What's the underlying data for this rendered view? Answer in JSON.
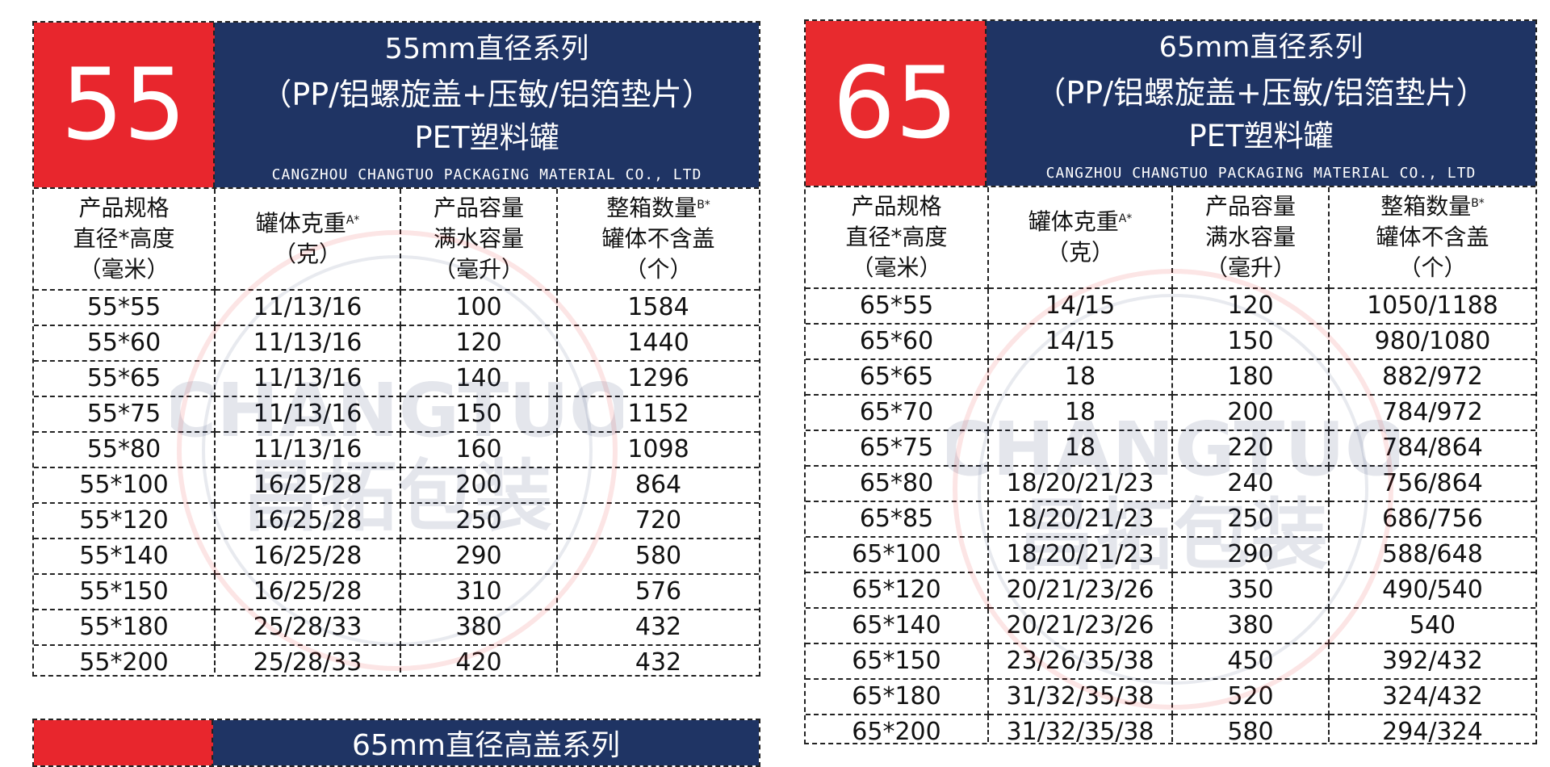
{
  "left": {
    "badge": "55",
    "title_line1": "55mm直径系列",
    "title_line2": "（PP/铝螺旋盖+压敏/铝箔垫片）",
    "title_line3": "PET塑料罐",
    "company": "CANGZHOU CHANGTUO PACKAGING MATERIAL CO., LTD",
    "headers": [
      {
        "lines": [
          "产品规格",
          "直径*高度",
          "（毫米）"
        ],
        "sup": ""
      },
      {
        "lines": [
          "罐体克重",
          "（克）"
        ],
        "sup": "A*"
      },
      {
        "lines": [
          "产品容量",
          "满水容量",
          "（毫升）"
        ],
        "sup": ""
      },
      {
        "lines": [
          "整箱数量",
          "罐体不含盖",
          "（个）"
        ],
        "sup": "B*"
      }
    ],
    "rows": [
      [
        "55*55",
        "11/13/16",
        "100",
        "1584"
      ],
      [
        "55*60",
        "11/13/16",
        "120",
        "1440"
      ],
      [
        "55*65",
        "11/13/16",
        "140",
        "1296"
      ],
      [
        "55*75",
        "11/13/16",
        "150",
        "1152"
      ],
      [
        "55*80",
        "11/13/16",
        "160",
        "1098"
      ],
      [
        "55*100",
        "16/25/28",
        "200",
        "864"
      ],
      [
        "55*120",
        "16/25/28",
        "250",
        "720"
      ],
      [
        "55*140",
        "16/25/28",
        "290",
        "580"
      ],
      [
        "55*150",
        "16/25/28",
        "310",
        "576"
      ],
      [
        "55*180",
        "25/28/33",
        "380",
        "432"
      ],
      [
        "55*200",
        "25/28/33",
        "420",
        "432"
      ]
    ]
  },
  "right": {
    "badge": "65",
    "title_line1": "65mm直径系列",
    "title_line2": "（PP/铝螺旋盖+压敏/铝箔垫片）",
    "title_line3": "PET塑料罐",
    "company": "CANGZHOU CHANGTUO PACKAGING MATERIAL CO., LTD",
    "headers": [
      {
        "lines": [
          "产品规格",
          "直径*高度",
          "（毫米）"
        ],
        "sup": ""
      },
      {
        "lines": [
          "罐体克重",
          "（克）"
        ],
        "sup": "A*"
      },
      {
        "lines": [
          "产品容量",
          "满水容量",
          "（毫升）"
        ],
        "sup": ""
      },
      {
        "lines": [
          "整箱数量",
          "罐体不含盖",
          "（个）"
        ],
        "sup": "B*"
      }
    ],
    "rows": [
      [
        "65*55",
        "14/15",
        "120",
        "1050/1188"
      ],
      [
        "65*60",
        "14/15",
        "150",
        "980/1080"
      ],
      [
        "65*65",
        "18",
        "180",
        "882/972"
      ],
      [
        "65*70",
        "18",
        "200",
        "784/972"
      ],
      [
        "65*75",
        "18",
        "220",
        "784/864"
      ],
      [
        "65*80",
        "18/20/21/23",
        "240",
        "756/864"
      ],
      [
        "65*85",
        "18/20/21/23",
        "250",
        "686/756"
      ],
      [
        "65*100",
        "18/20/21/23",
        "290",
        "588/648"
      ],
      [
        "65*120",
        "20/21/23/26",
        "350",
        "490/540"
      ],
      [
        "65*140",
        "20/21/23/26",
        "380",
        "540"
      ],
      [
        "65*150",
        "23/26/35/38",
        "450",
        "392/432"
      ],
      [
        "65*180",
        "31/32/35/38",
        "520",
        "324/432"
      ],
      [
        "65*200",
        "31/32/35/38",
        "580",
        "294/324"
      ]
    ]
  },
  "bottom": {
    "title": "65mm直径高盖系列"
  },
  "watermark": {
    "brand": "CHANGTUO",
    "cn": "昌拓包装"
  },
  "colors": {
    "badge_red": "#e8262d",
    "title_navy": "#1f3464"
  }
}
